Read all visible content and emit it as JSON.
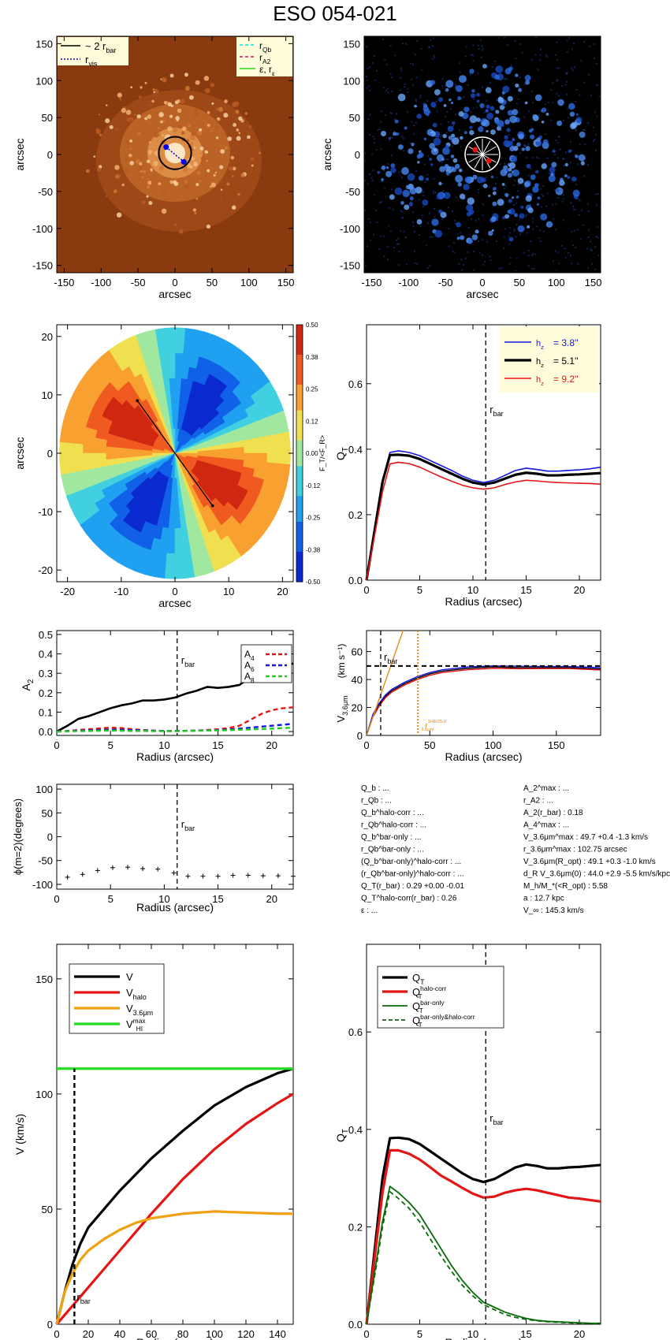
{
  "page": {
    "title": "ESO 054-021"
  },
  "chart_data": [
    {
      "id": "image_orange",
      "type": "image",
      "xlabel": "arcsec",
      "ylabel": "arcsec",
      "xlim": [
        -160,
        160
      ],
      "ylim": [
        -160,
        160
      ],
      "xticks": [
        -150,
        -100,
        -50,
        0,
        50,
        100,
        150
      ],
      "yticks": [
        -150,
        -100,
        -50,
        0,
        50,
        100,
        150
      ],
      "legend_left": [
        {
          "name": "~ 2 r_bar",
          "label": "~ 2 r",
          "sub": "bar",
          "color": "#000000",
          "dash": "solid"
        },
        {
          "name": "r_vis",
          "label": "r",
          "sub": "vis",
          "color": "#0000cc",
          "dash": "dot"
        }
      ],
      "legend_right": [
        {
          "name": "r_Qb",
          "label": "r",
          "sub": "Qb",
          "color": "#00e5e5",
          "dash": "dash"
        },
        {
          "name": "r_A2",
          "label": "r",
          "sub": "A2",
          "color": "#e5007a",
          "dash": "dash"
        },
        {
          "name": "epsilon_r_epsilon",
          "label": "ε, r",
          "sub": "ε",
          "color": "#22dd22",
          "dash": "solid"
        }
      ],
      "circle_radius": 22,
      "bar_points": [
        [
          -12,
          10
        ],
        [
          12,
          -10
        ]
      ]
    },
    {
      "id": "image_blue",
      "type": "image",
      "xlabel": "arcsec",
      "ylabel": "arcsec",
      "xlim": [
        -160,
        160
      ],
      "ylim": [
        -160,
        160
      ],
      "xticks": [
        -150,
        -100,
        -50,
        0,
        50,
        100,
        150
      ],
      "yticks": [
        -150,
        -100,
        -50,
        0,
        50,
        100,
        150
      ]
    },
    {
      "id": "force_ratio_map",
      "type": "heatmap",
      "xlabel": "arcsec",
      "ylabel": "arcsec",
      "xlim": [
        -22,
        22
      ],
      "ylim": [
        -22,
        22
      ],
      "xticks": [
        -20,
        -10,
        0,
        10,
        20
      ],
      "yticks": [
        -20,
        -10,
        0,
        10,
        20
      ],
      "colorbar_label": "F_T/<F_R>",
      "colorbar_ticks": [
        "0.50",
        "0.38",
        "0.25",
        "0.12",
        "0.00",
        "-0.12",
        "-0.25",
        "-0.38",
        "-0.50"
      ],
      "bar_line": [
        [
          -7,
          9
        ],
        [
          7,
          -9
        ]
      ]
    },
    {
      "id": "qt_profiles",
      "type": "line",
      "xlabel": "Radius (arcsec)",
      "ylabel": "Q_T",
      "xlim": [
        0,
        22
      ],
      "ylim": [
        0,
        0.78
      ],
      "xticks": [
        0,
        5,
        10,
        15,
        20
      ],
      "yticks": [
        0.0,
        0.2,
        0.4,
        0.6
      ],
      "rbar": 11.2,
      "rbar_label": "r_bar",
      "x": [
        0,
        0.5,
        1,
        1.5,
        2.2,
        3,
        4,
        5,
        6,
        7,
        8,
        9,
        10,
        11,
        12,
        13,
        14,
        15,
        16,
        17,
        18,
        19,
        20,
        21,
        22
      ],
      "series": [
        {
          "name": "h_z= 3.8''",
          "label": "h",
          "sub": "z",
          "value": "=  3.8''",
          "color": "#1515e0",
          "width": 1.6,
          "values": [
            0,
            0.1,
            0.2,
            0.3,
            0.39,
            0.395,
            0.39,
            0.38,
            0.365,
            0.35,
            0.335,
            0.318,
            0.305,
            0.298,
            0.305,
            0.32,
            0.335,
            0.342,
            0.338,
            0.333,
            0.333,
            0.335,
            0.337,
            0.34,
            0.345
          ]
        },
        {
          "name": "h_z= 5.1''",
          "label": "h",
          "sub": "z",
          "value": "=  5.1''",
          "color": "#000000",
          "width": 3.2,
          "values": [
            0,
            0.1,
            0.2,
            0.3,
            0.382,
            0.383,
            0.38,
            0.37,
            0.355,
            0.34,
            0.325,
            0.31,
            0.298,
            0.292,
            0.298,
            0.31,
            0.322,
            0.328,
            0.325,
            0.32,
            0.32,
            0.322,
            0.323,
            0.325,
            0.327
          ]
        },
        {
          "name": "h_z= 9.2''",
          "label": "h",
          "sub": "z",
          "value": "=  9.2''",
          "color": "#e51515",
          "width": 1.6,
          "values": [
            0,
            0.09,
            0.18,
            0.27,
            0.355,
            0.36,
            0.356,
            0.345,
            0.33,
            0.315,
            0.302,
            0.29,
            0.282,
            0.278,
            0.282,
            0.292,
            0.3,
            0.305,
            0.303,
            0.3,
            0.298,
            0.297,
            0.296,
            0.295,
            0.293
          ]
        }
      ]
    },
    {
      "id": "fourier_amplitudes",
      "type": "line",
      "xlabel": "Radius (arcsec)",
      "ylabel": "A_2",
      "xlim": [
        0,
        22
      ],
      "ylim": [
        -0.02,
        0.52
      ],
      "xticks": [
        0,
        5,
        10,
        15,
        20
      ],
      "yticks": [
        0.0,
        0.1,
        0.2,
        0.3,
        0.4,
        0.5
      ],
      "rbar": 11.2,
      "rbar_label": "r_bar",
      "x": [
        0,
        1,
        2,
        3,
        4,
        5,
        6,
        7,
        8,
        9,
        10,
        11,
        12,
        13,
        14,
        15,
        16,
        17,
        18,
        19,
        20,
        21,
        22
      ],
      "series": [
        {
          "name": "A_2",
          "color": "#000000",
          "width": 2.6,
          "dash": "solid",
          "values": [
            0,
            0.03,
            0.065,
            0.08,
            0.1,
            0.12,
            0.135,
            0.145,
            0.16,
            0.16,
            0.165,
            0.175,
            0.195,
            0.21,
            0.23,
            0.225,
            0.23,
            0.24,
            0.28,
            0.3,
            0.33,
            0.345,
            0.35
          ]
        },
        {
          "name": "A_4",
          "label": "A",
          "sub": "4",
          "color": "#e51515",
          "width": 2.4,
          "dash": "dash",
          "values": [
            0,
            0.003,
            0.008,
            0.012,
            0.016,
            0.02,
            0.018,
            0.012,
            0.008,
            0.005,
            0.003,
            0.002,
            0.003,
            0.005,
            0.008,
            0.012,
            0.018,
            0.03,
            0.06,
            0.09,
            0.11,
            0.12,
            0.125
          ]
        },
        {
          "name": "A_6",
          "label": "A",
          "sub": "6",
          "color": "#1515e0",
          "width": 2.4,
          "dash": "dash",
          "values": [
            0,
            0.002,
            0.004,
            0.006,
            0.008,
            0.01,
            0.009,
            0.007,
            0.005,
            0.004,
            0.003,
            0.003,
            0.004,
            0.005,
            0.006,
            0.008,
            0.01,
            0.015,
            0.02,
            0.025,
            0.03,
            0.035,
            0.04
          ]
        },
        {
          "name": "A_8",
          "label": "A",
          "sub": "8",
          "color": "#22cc22",
          "width": 2.4,
          "dash": "dash",
          "values": [
            0,
            0.001,
            0.002,
            0.003,
            0.004,
            0.005,
            0.004,
            0.003,
            0.003,
            0.002,
            0.002,
            0.002,
            0.003,
            0.004,
            0.005,
            0.006,
            0.007,
            0.009,
            0.011,
            0.013,
            0.015,
            0.018,
            0.02
          ]
        }
      ]
    },
    {
      "id": "rotation_curve_36um",
      "type": "line",
      "xlabel": "Radius (arcsec)",
      "ylabel": "V_3.6μm (km s^-1)",
      "xlim": [
        0,
        185
      ],
      "ylim": [
        0,
        75
      ],
      "xticks": [
        0,
        50,
        100,
        150
      ],
      "yticks": [
        0,
        20,
        40,
        60
      ],
      "rbar": 11.2,
      "rbar_label": "r_bar",
      "vmax": 49.7,
      "r_marker": 40.6,
      "r_marker_label": "r_3.6μm^1/4R_25.0",
      "x": [
        0,
        5,
        10,
        15,
        20,
        30,
        40,
        50,
        60,
        80,
        100,
        120,
        140,
        160,
        185
      ],
      "series": [
        {
          "name": "V_3.6um",
          "color": "#000000",
          "width": 1.4,
          "values": [
            0,
            14,
            22,
            28,
            32,
            37,
            41,
            44,
            46,
            48,
            49,
            48.5,
            48.5,
            48.5,
            47.5
          ]
        },
        {
          "name": "V_3.6um_error_upper",
          "color": "#1515e0",
          "width": 1.4,
          "values": [
            0,
            15,
            23,
            29,
            33,
            38,
            42,
            45,
            47,
            49,
            49.7,
            49.5,
            49.3,
            49.3,
            48.5
          ]
        },
        {
          "name": "V_3.6um_error_lower",
          "color": "#e51515",
          "width": 1.4,
          "values": [
            0,
            13,
            21,
            27,
            31,
            36,
            40,
            43,
            45,
            47,
            48,
            47.7,
            47.8,
            47.8,
            46.8
          ]
        },
        {
          "name": "inner_slope",
          "color": "#dd8a1c",
          "width": 1.4,
          "x": [
            0,
            30
          ],
          "values": [
            0,
            78
          ]
        }
      ]
    },
    {
      "id": "bar_phase",
      "type": "scatter",
      "xlabel": "Radius (arcsec)",
      "ylabel": "ϕ(m=2)(degrees)",
      "xlim": [
        0,
        22
      ],
      "ylim": [
        -110,
        110
      ],
      "xticks": [
        0,
        5,
        10,
        15,
        20
      ],
      "yticks": [
        -100,
        -50,
        0,
        50,
        100
      ],
      "rbar": 11.2,
      "rbar_label": "r_bar",
      "x": [
        1,
        2.4,
        3.8,
        5.2,
        6.6,
        8,
        9.4,
        10.9,
        12.2,
        13.6,
        15,
        16.4,
        17.8,
        19.2,
        20.6,
        22
      ],
      "values": [
        -85,
        -79,
        -71,
        -65,
        -64,
        -67,
        -68,
        -76,
        -83,
        -83,
        -83,
        -81,
        -81,
        -82,
        -82,
        -83
      ]
    },
    {
      "id": "parameter_table",
      "type": "table",
      "left_column": [
        "Q_b : ...",
        "r_Qb : ...",
        "Q_b^halo-corr : ...",
        "r_Qb^halo-corr : ...",
        "Q_b^bar-only : ...",
        "r_Qb^bar-only : ...",
        "(Q_b^bar-only)^halo-corr : ...",
        "(r_Qb^bar-only)^halo-corr : ...",
        "Q_T(r_bar) : 0.29 +0.00 -0.01",
        "Q_T^halo-corr(r_bar) : 0.26",
        "ε : ..."
      ],
      "right_column": [
        "A_2^max : ...",
        "r_A2 : ...",
        "A_2(r_bar) : 0.18",
        "A_4^max : ...",
        "V_3.6μm^max : 49.7 +0.4 -1.3 km/s",
        "r_3.6μm^max : 102.75 arcsec",
        "V_3.6μm(R_opt) : 49.1 +0.3 -1.0 km/s",
        "d_R V_3.6μm(0) : 44.0 +2.9 -5.5 km/s/kpc",
        "M_h/M_*(<R_opt) : 5.58",
        "a : 12.7 kpc",
        "V_∞ : 145.3 km/s"
      ]
    },
    {
      "id": "rotation_decomposition",
      "type": "line",
      "xlabel": "Radius (arcsec)",
      "ylabel": "V (km/s)",
      "xlim": [
        0,
        150
      ],
      "ylim": [
        0,
        165
      ],
      "xticks": [
        0,
        20,
        40,
        60,
        80,
        100,
        120,
        140
      ],
      "yticks": [
        0,
        50,
        100,
        150
      ],
      "rbar": 11.2,
      "rbar_label": "r_bar",
      "x": [
        0,
        5,
        10,
        15,
        20,
        30,
        40,
        50,
        60,
        80,
        100,
        120,
        140,
        150
      ],
      "series": [
        {
          "name": "V",
          "label": "V",
          "sub": "",
          "color": "#000000",
          "width": 3.2,
          "values": [
            0,
            14,
            26,
            35,
            42,
            50,
            58,
            65,
            72,
            84,
            95,
            103,
            109,
            111
          ]
        },
        {
          "name": "V_halo",
          "label": "V",
          "sub": "halo",
          "color": "#e51515",
          "width": 3.2,
          "values": [
            0,
            4,
            8,
            12,
            16,
            24,
            32,
            40,
            48,
            63,
            76,
            87,
            96,
            100
          ]
        },
        {
          "name": "V_3.6um",
          "label": "V",
          "sub": "3.6μm",
          "color": "#f0a010",
          "width": 3.2,
          "values": [
            0,
            14,
            22,
            28,
            32,
            37,
            41,
            44,
            46,
            48,
            49,
            48.5,
            48,
            48
          ]
        },
        {
          "name": "V_HI^max",
          "label": "V",
          "sub": "HI",
          "sup": "max",
          "color": "#22dd22",
          "width": 3.2,
          "values": [
            111,
            111,
            111,
            111,
            111,
            111,
            111,
            111,
            111,
            111,
            111,
            111,
            111,
            111
          ]
        }
      ]
    },
    {
      "id": "qt_corrections",
      "type": "line",
      "xlabel": "Radius (arcsec)",
      "ylabel": "Q_T",
      "xlim": [
        0,
        22
      ],
      "ylim": [
        0,
        0.78
      ],
      "xticks": [
        0,
        5,
        10,
        15,
        20
      ],
      "yticks": [
        0.0,
        0.2,
        0.4,
        0.6
      ],
      "rbar": 11.2,
      "rbar_label": "r_bar",
      "x": [
        0,
        0.5,
        1,
        1.5,
        2.2,
        3,
        4,
        5,
        6,
        7,
        8,
        9,
        10,
        11,
        12,
        13,
        14,
        15,
        16,
        17,
        18,
        19,
        20,
        21,
        22
      ],
      "series": [
        {
          "name": "Q_T",
          "label": "Q",
          "sub": "T",
          "sup": "",
          "color": "#000000",
          "width": 3.2,
          "dash": "solid",
          "values": [
            0,
            0.1,
            0.2,
            0.3,
            0.382,
            0.383,
            0.38,
            0.37,
            0.355,
            0.34,
            0.325,
            0.31,
            0.298,
            0.292,
            0.298,
            0.31,
            0.322,
            0.328,
            0.325,
            0.32,
            0.32,
            0.322,
            0.323,
            0.325,
            0.327
          ]
        },
        {
          "name": "Q_T^halo-corr",
          "label": "Q",
          "sub": "T",
          "sup": "halo-corr",
          "color": "#e51515",
          "width": 3.2,
          "dash": "solid",
          "values": [
            0,
            0.09,
            0.18,
            0.27,
            0.357,
            0.357,
            0.35,
            0.338,
            0.322,
            0.305,
            0.293,
            0.28,
            0.268,
            0.26,
            0.262,
            0.27,
            0.275,
            0.278,
            0.275,
            0.27,
            0.265,
            0.26,
            0.258,
            0.255,
            0.252
          ]
        },
        {
          "name": "Q_T^bar-only",
          "label": "Q",
          "sub": "T",
          "sup": "bar-only",
          "color": "#0a6a0a",
          "width": 1.8,
          "dash": "solid",
          "values": [
            0,
            0.07,
            0.14,
            0.21,
            0.283,
            0.27,
            0.25,
            0.225,
            0.19,
            0.155,
            0.12,
            0.09,
            0.065,
            0.045,
            0.035,
            0.025,
            0.018,
            0.012,
            0.008,
            0.006,
            0.005,
            0.004,
            0.003,
            0.002,
            0.002
          ]
        },
        {
          "name": "Q_T^bar-only&halo-corr",
          "label": "Q",
          "sub": "T",
          "sup": "bar-only&halo-corr",
          "color": "#0a6a0a",
          "width": 1.8,
          "dash": "dash",
          "values": [
            0,
            0.065,
            0.13,
            0.2,
            0.272,
            0.258,
            0.238,
            0.21,
            0.175,
            0.14,
            0.108,
            0.08,
            0.058,
            0.04,
            0.03,
            0.02,
            0.014,
            0.01,
            0.007,
            0.005,
            0.004,
            0.003,
            0.002,
            0.002,
            0.001
          ]
        }
      ]
    }
  ]
}
